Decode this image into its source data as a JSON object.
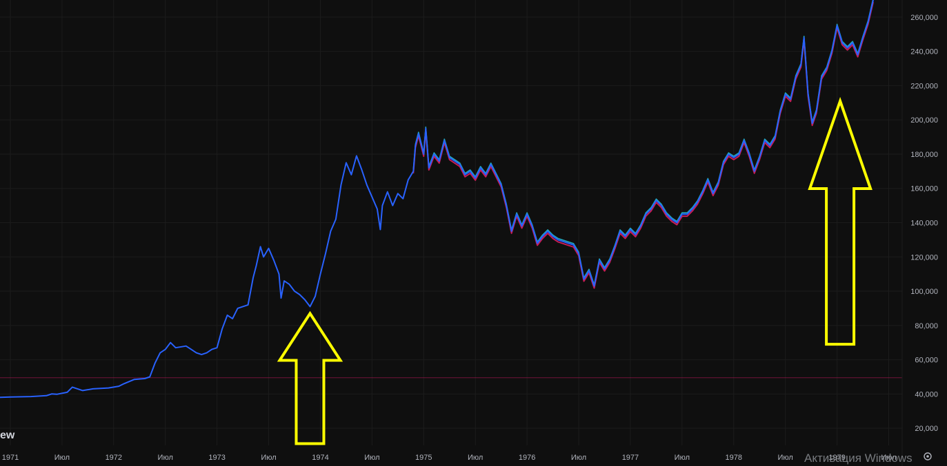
{
  "chart_data": {
    "type": "line",
    "title": "",
    "xlabel": "",
    "ylabel": "",
    "x_tick_labels": [
      "1971",
      "Июл",
      "1972",
      "Июл",
      "1973",
      "Июл",
      "1974",
      "Июл",
      "1975",
      "Июл",
      "1976",
      "Июл",
      "1977",
      "Июл",
      "1978",
      "Июл",
      "1979",
      "Июл"
    ],
    "y_tick_labels": [
      "20,000",
      "40,000",
      "60,000",
      "80,000",
      "100,000",
      "120,000",
      "140,000",
      "160,000",
      "180,000",
      "200,000",
      "220,000",
      "240,000",
      "260,000"
    ],
    "ylim": [
      10000,
      270000
    ],
    "xlim": [
      1970.9,
      1979.55
    ],
    "grid": true,
    "reference_line": {
      "value": 49500,
      "color": "#c2185b"
    },
    "colors": {
      "line": "#2962ff",
      "up_accent": "#26c6da",
      "down_accent": "#e91e63",
      "arrow": "#ffff00",
      "background": "#0f0f0f"
    },
    "series": [
      {
        "values": [
          [
            1970.9,
            38000
          ],
          [
            1971.0,
            38200
          ],
          [
            1971.2,
            38500
          ],
          [
            1971.35,
            39000
          ],
          [
            1971.4,
            40000
          ],
          [
            1971.45,
            39800
          ],
          [
            1971.55,
            41000
          ],
          [
            1971.6,
            44000
          ],
          [
            1971.7,
            42000
          ],
          [
            1971.8,
            43000
          ],
          [
            1971.95,
            43500
          ],
          [
            1972.05,
            44500
          ],
          [
            1972.1,
            46000
          ],
          [
            1972.2,
            48500
          ],
          [
            1972.3,
            49000
          ],
          [
            1972.35,
            50000
          ],
          [
            1972.4,
            58000
          ],
          [
            1972.45,
            64000
          ],
          [
            1972.5,
            66000
          ],
          [
            1972.55,
            70000
          ],
          [
            1972.6,
            67000
          ],
          [
            1972.7,
            68000
          ],
          [
            1972.75,
            66000
          ],
          [
            1972.8,
            64000
          ],
          [
            1972.85,
            63000
          ],
          [
            1972.9,
            64000
          ],
          [
            1972.95,
            66000
          ],
          [
            1973.0,
            67000
          ],
          [
            1973.05,
            78000
          ],
          [
            1973.1,
            86000
          ],
          [
            1973.15,
            84000
          ],
          [
            1973.2,
            90000
          ],
          [
            1973.3,
            92000
          ],
          [
            1973.35,
            108000
          ],
          [
            1973.38,
            115000
          ],
          [
            1973.42,
            126000
          ],
          [
            1973.45,
            120000
          ],
          [
            1973.5,
            125000
          ],
          [
            1973.55,
            118000
          ],
          [
            1973.6,
            110000
          ],
          [
            1973.62,
            96000
          ],
          [
            1973.65,
            106000
          ],
          [
            1973.7,
            104000
          ],
          [
            1973.75,
            100000
          ],
          [
            1973.8,
            98000
          ],
          [
            1973.85,
            95000
          ],
          [
            1973.9,
            91000
          ],
          [
            1973.95,
            97000
          ],
          [
            1974.0,
            110000
          ],
          [
            1974.05,
            122000
          ],
          [
            1974.1,
            135000
          ],
          [
            1974.15,
            142000
          ],
          [
            1974.2,
            162000
          ],
          [
            1974.25,
            175000
          ],
          [
            1974.3,
            168000
          ],
          [
            1974.35,
            179000
          ],
          [
            1974.4,
            171000
          ],
          [
            1974.45,
            162000
          ],
          [
            1974.5,
            155000
          ],
          [
            1974.55,
            148000
          ],
          [
            1974.58,
            136000
          ],
          [
            1974.6,
            150000
          ],
          [
            1974.65,
            158000
          ],
          [
            1974.7,
            150000
          ],
          [
            1974.75,
            157000
          ],
          [
            1974.8,
            154000
          ],
          [
            1974.85,
            165000
          ],
          [
            1974.9,
            170000
          ],
          [
            1974.92,
            185000
          ],
          [
            1974.95,
            192000
          ],
          [
            1975.0,
            180000
          ],
          [
            1975.02,
            195000
          ],
          [
            1975.05,
            172000
          ],
          [
            1975.1,
            180000
          ],
          [
            1975.15,
            176000
          ],
          [
            1975.2,
            188000
          ],
          [
            1975.25,
            178000
          ],
          [
            1975.3,
            176000
          ],
          [
            1975.35,
            174000
          ],
          [
            1975.4,
            168000
          ],
          [
            1975.45,
            170000
          ],
          [
            1975.5,
            166000
          ],
          [
            1975.55,
            172000
          ],
          [
            1975.6,
            168000
          ],
          [
            1975.65,
            174000
          ],
          [
            1975.7,
            168000
          ],
          [
            1975.75,
            162000
          ],
          [
            1975.8,
            150000
          ],
          [
            1975.85,
            135000
          ],
          [
            1975.9,
            145000
          ],
          [
            1975.95,
            138000
          ],
          [
            1976.0,
            145000
          ],
          [
            1976.05,
            138000
          ],
          [
            1976.1,
            128000
          ],
          [
            1976.15,
            132000
          ],
          [
            1976.2,
            135000
          ],
          [
            1976.25,
            132000
          ],
          [
            1976.3,
            130000
          ],
          [
            1976.35,
            129000
          ],
          [
            1976.4,
            128000
          ],
          [
            1976.45,
            127000
          ],
          [
            1976.5,
            122000
          ],
          [
            1976.55,
            107000
          ],
          [
            1976.6,
            112000
          ],
          [
            1976.65,
            103000
          ],
          [
            1976.7,
            118000
          ],
          [
            1976.75,
            113000
          ],
          [
            1976.8,
            118000
          ],
          [
            1976.85,
            126000
          ],
          [
            1976.9,
            135000
          ],
          [
            1976.95,
            132000
          ],
          [
            1977.0,
            136000
          ],
          [
            1977.05,
            133000
          ],
          [
            1977.1,
            138000
          ],
          [
            1977.15,
            145000
          ],
          [
            1977.2,
            148000
          ],
          [
            1977.25,
            153000
          ],
          [
            1977.3,
            150000
          ],
          [
            1977.35,
            145000
          ],
          [
            1977.4,
            142000
          ],
          [
            1977.45,
            140000
          ],
          [
            1977.5,
            145000
          ],
          [
            1977.55,
            145000
          ],
          [
            1977.6,
            148000
          ],
          [
            1977.65,
            152000
          ],
          [
            1977.7,
            158000
          ],
          [
            1977.75,
            165000
          ],
          [
            1977.8,
            157000
          ],
          [
            1977.85,
            163000
          ],
          [
            1977.9,
            175000
          ],
          [
            1977.95,
            180000
          ],
          [
            1978.0,
            178000
          ],
          [
            1978.05,
            180000
          ],
          [
            1978.1,
            188000
          ],
          [
            1978.15,
            180000
          ],
          [
            1978.2,
            170000
          ],
          [
            1978.25,
            178000
          ],
          [
            1978.3,
            188000
          ],
          [
            1978.35,
            185000
          ],
          [
            1978.4,
            190000
          ],
          [
            1978.45,
            205000
          ],
          [
            1978.5,
            215000
          ],
          [
            1978.55,
            212000
          ],
          [
            1978.6,
            225000
          ],
          [
            1978.65,
            232000
          ],
          [
            1978.68,
            248000
          ],
          [
            1978.72,
            215000
          ],
          [
            1978.76,
            198000
          ],
          [
            1978.8,
            205000
          ],
          [
            1978.85,
            225000
          ],
          [
            1978.9,
            230000
          ],
          [
            1978.95,
            240000
          ],
          [
            1979.0,
            255000
          ],
          [
            1979.05,
            245000
          ],
          [
            1979.1,
            242000
          ],
          [
            1979.15,
            245000
          ],
          [
            1979.2,
            238000
          ],
          [
            1979.25,
            248000
          ],
          [
            1979.3,
            257000
          ],
          [
            1979.35,
            270000
          ]
        ]
      }
    ],
    "annotations": [
      {
        "type": "up-arrow",
        "x": 1973.9,
        "tip_y": 87000,
        "base_y": 11000,
        "color": "#ffff00"
      },
      {
        "type": "up-arrow",
        "x": 1979.03,
        "tip_y": 211000,
        "base_y": 69000,
        "color": "#ffff00"
      }
    ]
  },
  "brand_fragment": "ew",
  "watermark": "Активация Windows",
  "icons": {
    "settings": "gear-icon"
  }
}
